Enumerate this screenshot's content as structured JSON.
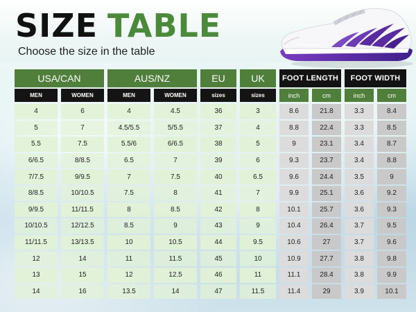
{
  "title": {
    "word1": "SIZE",
    "word2": "TABLE"
  },
  "subtitle": "Choose the size in the table",
  "colors": {
    "green": "#4f7f3b",
    "black": "#141414",
    "light_green_cell": "#e2f2d6",
    "gray_cell": "#dcdcdc",
    "gray_cell_alt": "#c9c9c9",
    "shoe_accent": "#5a2aa0"
  },
  "groups": {
    "usa_can": "USA/CAN",
    "aus_nz": "AUS/NZ",
    "eu": "EU",
    "uk": "UK",
    "foot_length": "FOOT LENGTH",
    "foot_width": "FOOT WIDTH"
  },
  "subheaders": {
    "usa_men": "MEN",
    "usa_women": "WOMEN",
    "aus_men": "MEN",
    "aus_women": "WOMEN",
    "eu": "sizes",
    "uk": "sizes",
    "len_inch": "inch",
    "len_cm": "cm",
    "wid_inch": "inch",
    "wid_cm": "cm"
  },
  "rows": [
    [
      "4",
      "6",
      "4",
      "4.5",
      "36",
      "3",
      "8.6",
      "21.8",
      "3.3",
      "8.4"
    ],
    [
      "5",
      "7",
      "4.5/5.5",
      "5/5.5",
      "37",
      "4",
      "8.8",
      "22.4",
      "3.3",
      "8.5"
    ],
    [
      "5.5",
      "7.5",
      "5.5/6",
      "6/6.5",
      "38",
      "5",
      "9",
      "23.1",
      "3.4",
      "8.7"
    ],
    [
      "6/6.5",
      "8/8.5",
      "6.5",
      "7",
      "39",
      "6",
      "9.3",
      "23.7",
      "3.4",
      "8.8"
    ],
    [
      "7/7.5",
      "9/9.5",
      "7",
      "7.5",
      "40",
      "6.5",
      "9.6",
      "24.4",
      "3.5",
      "9"
    ],
    [
      "8/8.5",
      "10/10.5",
      "7.5",
      "8",
      "41",
      "7",
      "9.9",
      "25.1",
      "3.6",
      "9.2"
    ],
    [
      "9/9.5",
      "11/11.5",
      "8",
      "8.5",
      "42",
      "8",
      "10.1",
      "25.7",
      "3.6",
      "9.3"
    ],
    [
      "10/10.5",
      "12/12.5",
      "8.5",
      "9",
      "43",
      "9",
      "10.4",
      "26.4",
      "3.7",
      "9.5"
    ],
    [
      "11/11.5",
      "13/13.5",
      "10",
      "10.5",
      "44",
      "9.5",
      "10.6",
      "27",
      "3.7",
      "9.6"
    ],
    [
      "12",
      "14",
      "11",
      "11.5",
      "45",
      "10",
      "10.9",
      "27.7",
      "3.8",
      "9.8"
    ],
    [
      "13",
      "15",
      "12",
      "12.5",
      "46",
      "11",
      "11.1",
      "28.4",
      "3.8",
      "9.9"
    ],
    [
      "14",
      "16",
      "13.5",
      "14",
      "47",
      "11.5",
      "11.4",
      "29",
      "3.9",
      "10.1"
    ]
  ],
  "shoe_icon": "barefoot-shoe-image"
}
